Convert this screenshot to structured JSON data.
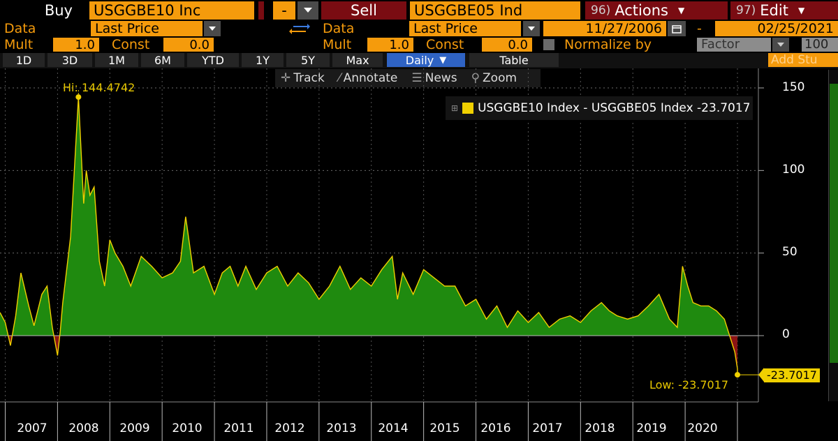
{
  "row1": {
    "buy_label": "Buy",
    "buy_ticker": "USGGBE10 Inc",
    "operator": "-",
    "sell_label": "Sell",
    "sell_ticker": "USGGBE05 Ind",
    "actions_num": "96)",
    "actions_label": "Actions",
    "edit_num": "97)",
    "edit_label": "Edit"
  },
  "row2": {
    "data_label_left": "Data",
    "data_value_left": "Last Price",
    "data_label_right": "Data",
    "data_value_right": "Last Price",
    "start_date": "11/27/2006",
    "date_sep": "-",
    "end_date": "02/25/2021"
  },
  "row3": {
    "mult_label_left": "Mult",
    "mult_value_left": "1.0",
    "const_label_left": "Const",
    "const_value_left": "0.0",
    "mult_label_right": "Mult",
    "mult_value_right": "1.0",
    "const_label_right": "Const",
    "const_value_right": "0.0",
    "normalize_label": "Normalize by",
    "normalize_value": "Factor",
    "normalize_amount": "100"
  },
  "period_tabs": [
    "1D",
    "3D",
    "1M",
    "6M",
    "YTD",
    "1Y",
    "5Y",
    "Max"
  ],
  "frequency": "Daily",
  "table_label": "Table",
  "add_study_label": "Add Stu",
  "chart_tools": {
    "track": "Track",
    "annotate": "Annotate",
    "news": "News",
    "zoom": "Zoom"
  },
  "colors": {
    "positive_fill": "#1f8a0f",
    "negative_fill": "#8b1414",
    "line": "#f0d000",
    "accent_orange": "#f59b0c",
    "header_red": "#7a0c12"
  },
  "chart_data": {
    "type": "area",
    "legend": "USGGBE10 Index - USGGBE05 Index -23.7017",
    "hi_label": "Hi: 144.4742",
    "low_label": "Low: -23.7017",
    "last_value_label": "-23.7017",
    "y_ticks": [
      "150",
      "100",
      "50",
      "0"
    ],
    "x_labels": [
      "2007",
      "2008",
      "2009",
      "2010",
      "2011",
      "2012",
      "2013",
      "2014",
      "2015",
      "2016",
      "2017",
      "2018",
      "2019",
      "2020"
    ],
    "ylim": [
      -40,
      160
    ],
    "x_range": [
      2006.9,
      2021.15
    ],
    "x": [
      2006.9,
      2007.0,
      2007.1,
      2007.2,
      2007.3,
      2007.45,
      2007.55,
      2007.7,
      2007.8,
      2007.9,
      2008.0,
      2008.05,
      2008.1,
      2008.25,
      2008.4,
      2008.5,
      2008.55,
      2008.62,
      2008.7,
      2008.8,
      2008.9,
      2009.0,
      2009.1,
      2009.25,
      2009.4,
      2009.6,
      2009.8,
      2010.0,
      2010.2,
      2010.35,
      2010.45,
      2010.6,
      2010.8,
      2011.0,
      2011.15,
      2011.3,
      2011.45,
      2011.6,
      2011.8,
      2012.0,
      2012.2,
      2012.4,
      2012.6,
      2012.8,
      2013.0,
      2013.2,
      2013.4,
      2013.6,
      2013.8,
      2014.0,
      2014.2,
      2014.4,
      2014.5,
      2014.6,
      2014.8,
      2015.0,
      2015.2,
      2015.4,
      2015.6,
      2015.8,
      2016.0,
      2016.2,
      2016.4,
      2016.6,
      2016.8,
      2017.0,
      2017.2,
      2017.4,
      2017.6,
      2017.8,
      2018.0,
      2018.2,
      2018.4,
      2018.55,
      2018.7,
      2018.9,
      2019.1,
      2019.3,
      2019.5,
      2019.7,
      2019.85,
      2019.95,
      2020.05,
      2020.15,
      2020.3,
      2020.45,
      2020.6,
      2020.75,
      2020.85,
      2020.95,
      2021.0,
      2021.05,
      2021.1,
      2021.15
    ],
    "y": [
      14,
      8,
      -6,
      12,
      38,
      18,
      6,
      25,
      30,
      5,
      -12,
      2,
      20,
      60,
      144.47,
      80,
      100,
      85,
      90,
      45,
      30,
      58,
      50,
      42,
      30,
      48,
      42,
      35,
      38,
      45,
      72,
      38,
      42,
      25,
      38,
      42,
      30,
      42,
      28,
      38,
      42,
      30,
      38,
      32,
      22,
      30,
      42,
      28,
      35,
      30,
      40,
      48,
      22,
      38,
      25,
      40,
      35,
      30,
      30,
      18,
      22,
      10,
      18,
      5,
      15,
      8,
      14,
      5,
      10,
      12,
      8,
      15,
      20,
      15,
      12,
      10,
      12,
      18,
      25,
      10,
      5,
      42,
      30,
      20,
      18,
      18,
      15,
      10,
      0,
      -10,
      -20,
      -23.7,
      -23.7,
      -23.7
    ]
  }
}
